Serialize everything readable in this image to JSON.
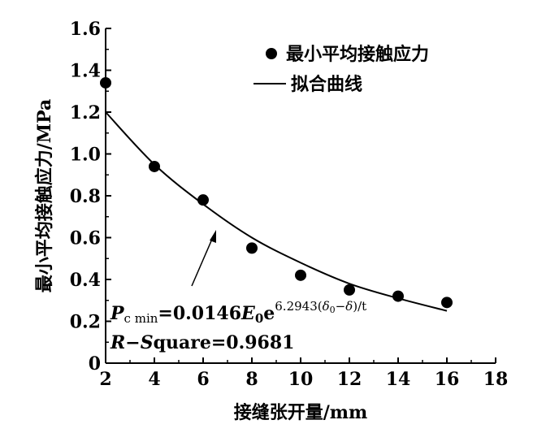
{
  "chart_data": {
    "type": "scatter",
    "xlabel": "接缝张开量/mm",
    "ylabel": "最小平均接触应力/MPa",
    "xlim": [
      2,
      18
    ],
    "ylim": [
      0,
      1.6
    ],
    "xticks": [
      2,
      4,
      6,
      8,
      10,
      12,
      14,
      16,
      18
    ],
    "yticks": [
      0,
      0.2,
      0.4,
      0.6,
      0.8,
      1.0,
      1.2,
      1.4,
      1.6
    ],
    "xtick_labels": [
      "2",
      "4",
      "6",
      "8",
      "10",
      "12",
      "14",
      "16",
      "18"
    ],
    "ytick_labels": [
      "0",
      "0.2",
      "0.4",
      "0.6",
      "0.8",
      "1.0",
      "1.2",
      "1.4",
      "1.6"
    ],
    "grid": false,
    "legend_position": "top-right",
    "series": [
      {
        "name": "最小平均接触应力",
        "kind": "points",
        "x": [
          2,
          4,
          6,
          8,
          10,
          12,
          14,
          16
        ],
        "y": [
          1.34,
          0.94,
          0.78,
          0.55,
          0.42,
          0.35,
          0.32,
          0.29
        ]
      },
      {
        "name": "拟合曲线",
        "kind": "line",
        "x": [
          2,
          4,
          6,
          8,
          10,
          12,
          14,
          16
        ],
        "y": [
          1.2,
          0.95,
          0.76,
          0.6,
          0.48,
          0.38,
          0.31,
          0.25
        ]
      }
    ],
    "annotation": {
      "equation": {
        "p": "P",
        "p_sub": "c min",
        "eq_and_coef": "=0.0146",
        "e": "E",
        "e_sub": "0",
        "base": "e",
        "exp_main": "6.2943(",
        "delta": "δ",
        "delta_sub": "0",
        "exp_tail": "−",
        "delta2": "δ",
        "exp_end": ")/t"
      },
      "r_square": {
        "r": "R",
        "dash": "−",
        "s": "S",
        "rest": "quare=0.9681"
      }
    }
  }
}
